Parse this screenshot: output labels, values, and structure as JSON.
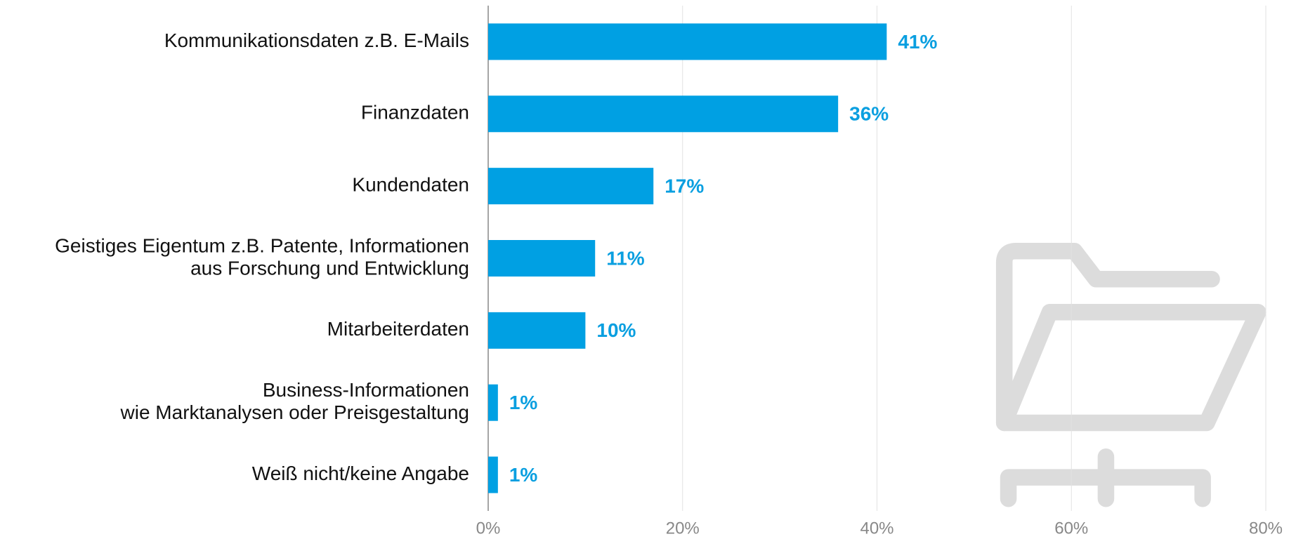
{
  "chart_data": {
    "type": "bar",
    "orientation": "horizontal",
    "categories": [
      "Kommunikationsdaten z.B. E-Mails",
      "Finanzdaten",
      "Kundendaten",
      [
        "Geistiges Eigentum z.B. Patente, Informationen",
        "aus Forschung und Entwicklung"
      ],
      "Mitarbeiterdaten",
      [
        "Business-Informationen",
        "wie Marktanalysen oder Preisgestaltung"
      ],
      "Weiß nicht/keine Angabe"
    ],
    "values": [
      41,
      36,
      17,
      11,
      10,
      1,
      1
    ],
    "value_labels": [
      "41%",
      "36%",
      "17%",
      "11%",
      "10%",
      "1%",
      "1%"
    ],
    "color": "#00a0e3",
    "xlim": [
      0,
      80
    ],
    "xticks": [
      {
        "value": 0,
        "label": "0%"
      },
      {
        "value": 20,
        "label": "20%"
      },
      {
        "value": 40,
        "label": "40%"
      },
      {
        "value": 60,
        "label": "60%"
      },
      {
        "value": 80,
        "label": "80%"
      }
    ],
    "grid": true
  }
}
